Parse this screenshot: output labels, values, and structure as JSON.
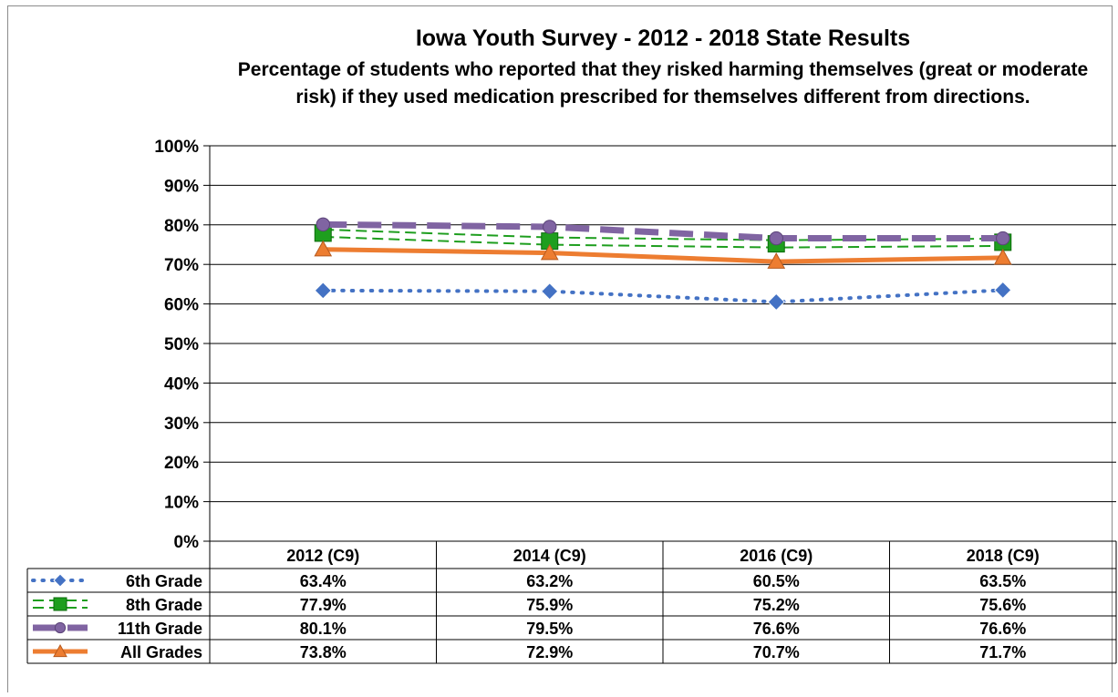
{
  "chart_data": {
    "type": "line",
    "title": "Iowa Youth Survey - 2012 - 2018 State Results",
    "subtitle": "Percentage of students who reported that they risked harming themselves (great or moderate risk) if they used medication prescribed for themselves different from directions.",
    "categories": [
      "2012 (C9)",
      "2014 (C9)",
      "2016 (C9)",
      "2018 (C9)"
    ],
    "ylim": [
      0,
      100
    ],
    "y_ticks": [
      "0%",
      "10%",
      "20%",
      "30%",
      "40%",
      "50%",
      "60%",
      "70%",
      "80%",
      "90%",
      "100%"
    ],
    "grid": true,
    "legend": "data-table",
    "series": [
      {
        "name": "6th Grade",
        "values": [
          63.4,
          63.2,
          60.5,
          63.5
        ],
        "labels": [
          "63.4%",
          "63.2%",
          "60.5%",
          "63.5%"
        ],
        "color": "#4472C4",
        "line": "dotted",
        "marker": "diamond"
      },
      {
        "name": "8th Grade",
        "values": [
          77.9,
          75.9,
          75.2,
          75.6
        ],
        "labels": [
          "77.9%",
          "75.9%",
          "75.2%",
          "75.6%"
        ],
        "color": "#1E9E1E",
        "line": "double-dashed",
        "marker": "square"
      },
      {
        "name": "11th Grade",
        "values": [
          80.1,
          79.5,
          76.6,
          76.6
        ],
        "labels": [
          "80.1%",
          "79.5%",
          "76.6%",
          "76.6%"
        ],
        "color": "#8064A2",
        "line": "long-dash",
        "marker": "circle"
      },
      {
        "name": "All Grades",
        "values": [
          73.8,
          72.9,
          70.7,
          71.7
        ],
        "labels": [
          "73.8%",
          "72.9%",
          "70.7%",
          "71.7%"
        ],
        "color": "#ED7D31",
        "line": "solid",
        "marker": "triangle"
      }
    ]
  }
}
